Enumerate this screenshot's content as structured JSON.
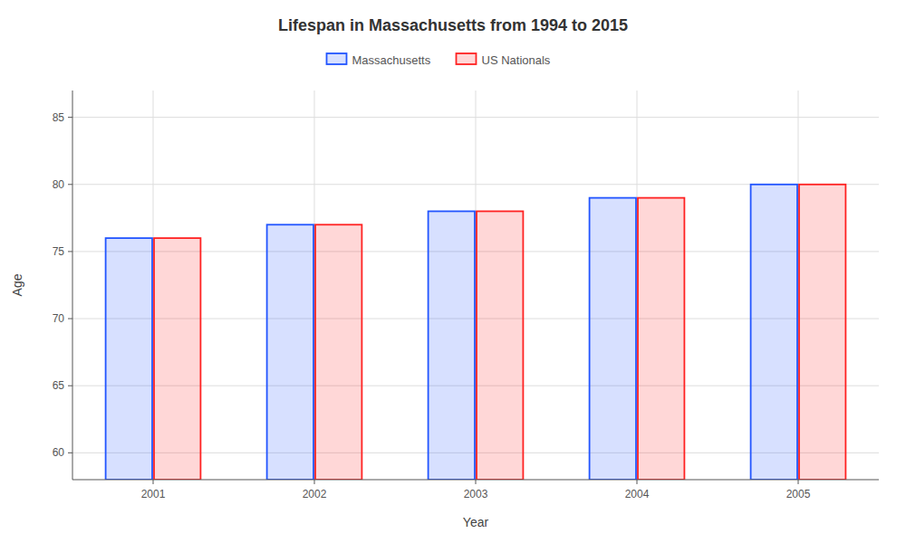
{
  "chart_data": {
    "type": "bar",
    "title": "Lifespan in Massachusetts from 1994 to 2015",
    "xlabel": "Year",
    "ylabel": "Age",
    "categories": [
      "2001",
      "2002",
      "2003",
      "2004",
      "2005"
    ],
    "series": [
      {
        "name": "Massachusetts",
        "color": "#2255ff",
        "values": [
          76.0,
          77.0,
          78.0,
          79.0,
          80.0
        ]
      },
      {
        "name": "US Nationals",
        "color": "#ff2222",
        "values": [
          76.0,
          77.0,
          78.0,
          79.0,
          80.0
        ]
      }
    ],
    "ylim": [
      58,
      87
    ],
    "yticks": [
      60,
      65,
      70,
      75,
      80,
      85
    ],
    "grid": true,
    "legend": "top"
  }
}
